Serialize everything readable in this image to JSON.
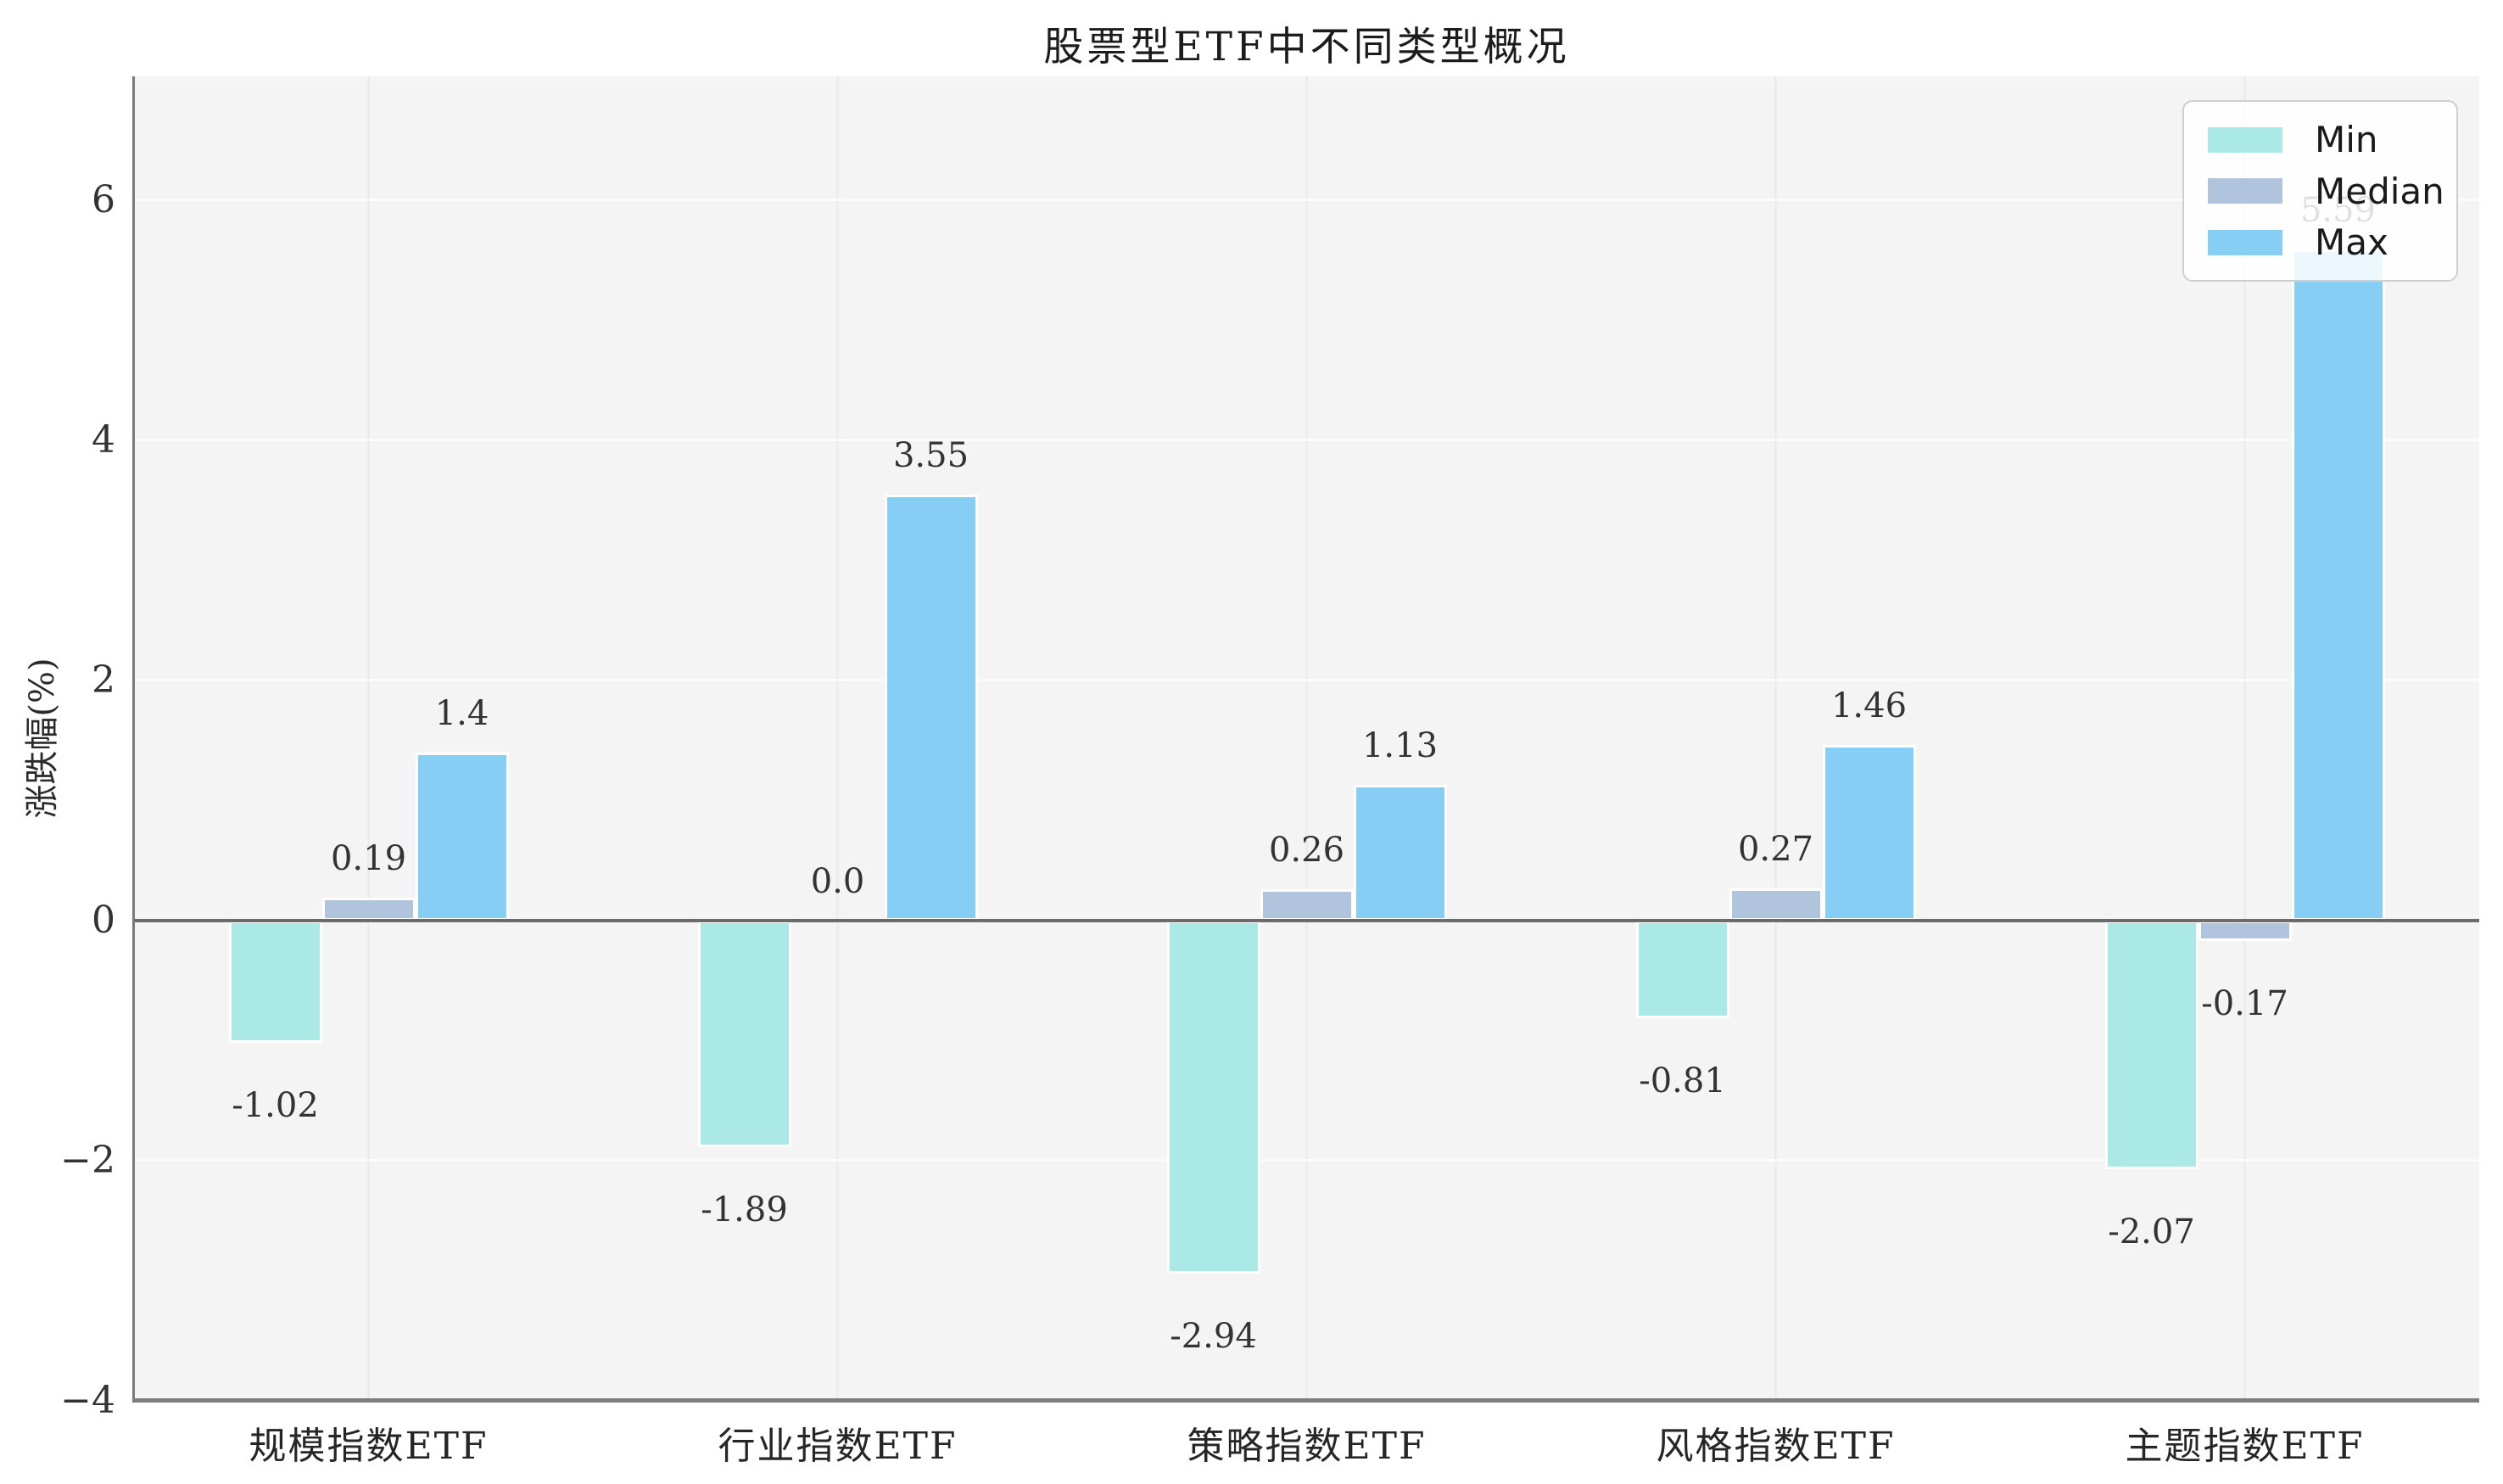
{
  "chart_data": {
    "type": "bar",
    "title": "股票型ETF中不同类型概况",
    "xlabel": "",
    "ylabel": "涨跌幅(%)",
    "categories": [
      "规模指数ETF",
      "行业指数ETF",
      "策略指数ETF",
      "风格指数ETF",
      "主题指数ETF"
    ],
    "series": [
      {
        "name": "Min",
        "color": "#aae9e5",
        "values": [
          -1.02,
          -1.89,
          -2.94,
          -0.81,
          -2.07
        ]
      },
      {
        "name": "Median",
        "color": "#b0c4de",
        "values": [
          0.19,
          0.0,
          0.26,
          0.27,
          -0.17
        ]
      },
      {
        "name": "Max",
        "color": "#87cef5",
        "values": [
          1.4,
          3.55,
          1.13,
          1.46,
          5.59
        ]
      }
    ],
    "bar_labels": [
      [
        "-1.02",
        "-1.89",
        "-2.94",
        "-0.81",
        "-2.07"
      ],
      [
        "0.19",
        "0.0",
        "0.26",
        "0.27",
        "-0.17"
      ],
      [
        "1.4",
        "3.55",
        "1.13",
        "1.46",
        "5.59"
      ]
    ],
    "ylim": [
      -4,
      7.03
    ],
    "yticks": [
      6,
      4,
      2,
      0,
      -2,
      -4
    ],
    "ytick_labels": [
      "6",
      "4",
      "2",
      "0",
      "−2",
      "−4"
    ],
    "grid": true,
    "legend_position": "upper right",
    "legend_labels": [
      "Min",
      "Median",
      "Max"
    ]
  },
  "colors": {
    "plot_background": "#f4f4f4",
    "zero_line": "#6b6b6b",
    "min_series": "#aae9e5",
    "median_series": "#b0c4de",
    "max_series": "#87cef5"
  }
}
